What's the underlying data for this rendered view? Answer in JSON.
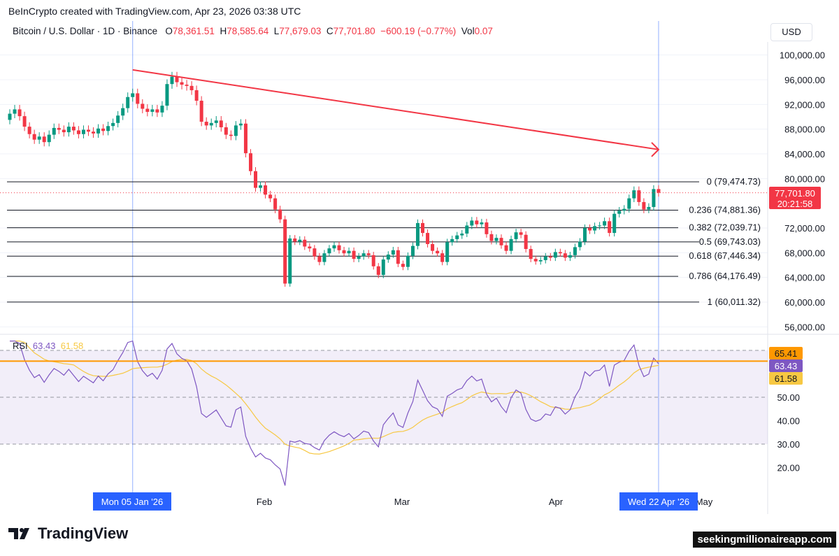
{
  "header": {
    "credit": "BeInCrypto created with TradingView.com, Apr 23, 2026 03:38 UTC",
    "symbol": "Bitcoin / U.S. Dollar · 1D · Binance",
    "o_label": "O",
    "o": "78,361.51",
    "h_label": "H",
    "h": "78,585.64",
    "l_label": "L",
    "l": "77,679.03",
    "c_label": "C",
    "c": "77,701.80",
    "change": "−600.19 (−0.77%)",
    "vol_label": "Vol",
    "vol": "0.07",
    "currency": "USD"
  },
  "rsi_legend": {
    "label": "RSI",
    "rsi": "63.43",
    "ma": "61.58"
  },
  "footer": {
    "logo": "TradingView",
    "watermark": "seekingmillionaireapp.com"
  },
  "colors": {
    "up": "#089981",
    "down": "#f23645",
    "trend": "#f23645",
    "rsi": "#7e57c2",
    "rsi_ma": "#f7c843",
    "band": "#ff9800",
    "crosshair": "#2962ff"
  },
  "chart_data": [
    {
      "type": "candlestick",
      "interval": "1D",
      "start_date": "2025-12-11",
      "end_date": "2026-04-22",
      "first_open": 89500,
      "closes": [
        90500,
        91200,
        90100,
        88400,
        87200,
        86300,
        86800,
        85900,
        87100,
        88200,
        87900,
        87500,
        88400,
        87800,
        87200,
        87900,
        87600,
        87300,
        88100,
        87700,
        88500,
        89000,
        90200,
        91400,
        93200,
        93800,
        92100,
        91300,
        90800,
        91200,
        90700,
        91800,
        95300,
        96500,
        95600,
        95200,
        95000,
        94300,
        92600,
        89200,
        88600,
        89000,
        89400,
        88300,
        87100,
        86900,
        88600,
        88900,
        84100,
        81200,
        78500,
        78900,
        77400,
        76800,
        75000,
        73400,
        63000,
        70300,
        69800,
        70100,
        69000,
        68700,
        67400,
        66500,
        67900,
        68700,
        69200,
        68400,
        67900,
        68300,
        67000,
        67400,
        67900,
        67600,
        65800,
        64400,
        66900,
        67700,
        68400,
        66200,
        65700,
        67500,
        69100,
        72800,
        71200,
        69400,
        68300,
        67900,
        66500,
        69700,
        70200,
        70800,
        71100,
        72400,
        73200,
        72600,
        72900,
        71000,
        69900,
        70400,
        69200,
        68300,
        70200,
        71300,
        70900,
        68600,
        67000,
        66600,
        66800,
        67400,
        67200,
        68100,
        67900,
        67200,
        67600,
        68900,
        69800,
        72000,
        71600,
        72300,
        72400,
        73100,
        71200,
        74300,
        74800,
        75100,
        76800,
        78100,
        76200,
        75000,
        75400,
        78300,
        77700
      ],
      "y_ticks": [
        "100,000.00",
        "96,000.00",
        "92,000.00",
        "88,000.00",
        "84,000.00",
        "80,000.00",
        "72,000.00",
        "68,000.00",
        "64,000.00",
        "60,000.00",
        "56,000.00"
      ],
      "y_tick_values": [
        100000,
        96000,
        92000,
        88000,
        84000,
        80000,
        72000,
        68000,
        64000,
        60000,
        56000
      ],
      "x_ticks": [
        "Feb",
        "Mar",
        "Apr",
        "May"
      ],
      "x_highlights": [
        "Mon 05 Jan '26",
        "Wed 22 Apr '26"
      ],
      "last_price": {
        "value": "77,701.80",
        "countdown": "20:21:58"
      },
      "fib_levels": [
        {
          "ratio": "0",
          "price": 79474.73,
          "label": "0 (79,474.73)"
        },
        {
          "ratio": "0.236",
          "price": 74881.36,
          "label": "0.236 (74,881.36)"
        },
        {
          "ratio": "0.382",
          "price": 72039.71,
          "label": "0.382 (72,039.71)"
        },
        {
          "ratio": "0.5",
          "price": 69743.03,
          "label": "0.5 (69,743.03)"
        },
        {
          "ratio": "0.618",
          "price": 67446.34,
          "label": "0.618 (67,446.34)"
        },
        {
          "ratio": "0.786",
          "price": 64176.49,
          "label": "0.786 (64,176.49)"
        },
        {
          "ratio": "1",
          "price": 60011.32,
          "label": "1 (60,011.32)"
        }
      ],
      "trendline": {
        "from": {
          "date": "2026-01-05",
          "price": 97600
        },
        "to": {
          "date": "2026-04-22",
          "price": 84700
        }
      }
    },
    {
      "type": "line",
      "name": "RSI",
      "ylim": [
        10,
        75
      ],
      "y_ticks": [
        "50.00",
        "40.00",
        "30.00",
        "20.00"
      ],
      "y_tick_values": [
        50,
        40,
        30,
        20
      ],
      "bands": [
        30,
        50,
        70
      ],
      "horizontal_level": 65.41,
      "labels": {
        "level": "65.41",
        "rsi": "63.43",
        "ma": "61.58"
      }
    }
  ]
}
